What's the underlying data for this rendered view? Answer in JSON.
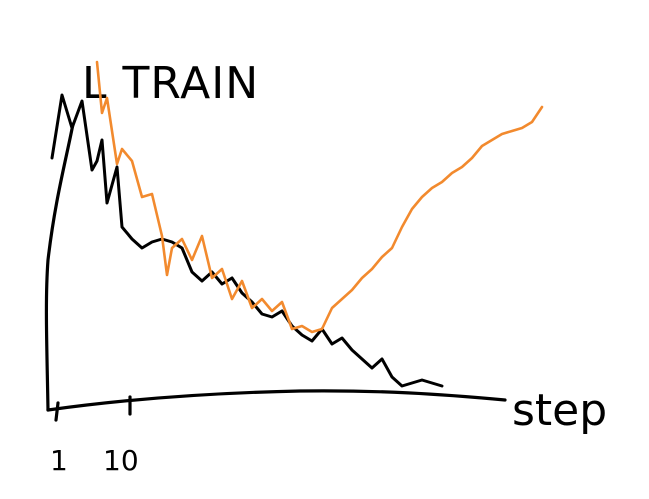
{
  "chart_data": {
    "type": "line",
    "title": "L TRAIN",
    "xlabel": "step",
    "ylabel": "",
    "x_ticks": [
      "1",
      "10"
    ],
    "grid": false,
    "series": [
      {
        "color": "#000000",
        "x": [
          1,
          3,
          5,
          7,
          9,
          10,
          11,
          12,
          13,
          14,
          15,
          17,
          19,
          21,
          23,
          25,
          27,
          29,
          31,
          33,
          35,
          37,
          39,
          41,
          43,
          45,
          47,
          49,
          51,
          53,
          55,
          57,
          59,
          61,
          63,
          65,
          67,
          69,
          71,
          73,
          75,
          77,
          79
        ],
        "values": [
          0.78,
          0.99,
          0.88,
          0.97,
          0.74,
          0.77,
          0.84,
          0.63,
          0.69,
          0.75,
          0.55,
          0.51,
          0.48,
          0.5,
          0.51,
          0.5,
          0.48,
          0.4,
          0.37,
          0.4,
          0.36,
          0.38,
          0.33,
          0.3,
          0.26,
          0.25,
          0.27,
          0.22,
          0.19,
          0.17,
          0.21,
          0.16,
          0.18,
          0.14,
          0.11,
          0.08,
          0.11,
          0.05,
          0.02,
          0.03,
          0.04,
          0.03,
          0.02
        ]
      },
      {
        "color": "#f28a2e",
        "x": [
          10,
          11,
          12,
          14,
          15,
          17,
          19,
          21,
          23,
          24,
          25,
          27,
          29,
          31,
          33,
          35,
          37,
          39,
          41,
          43,
          45,
          47,
          49,
          51,
          53,
          55,
          57,
          59,
          61,
          63,
          65,
          67,
          69,
          71,
          73,
          75,
          77,
          79,
          81,
          83,
          85,
          87,
          89,
          91,
          93,
          95,
          97,
          99
        ],
        "values": [
          1.1,
          0.93,
          0.98,
          0.76,
          0.81,
          0.77,
          0.65,
          0.66,
          0.52,
          0.39,
          0.48,
          0.51,
          0.44,
          0.52,
          0.38,
          0.41,
          0.31,
          0.37,
          0.28,
          0.31,
          0.27,
          0.3,
          0.21,
          0.22,
          0.2,
          0.21,
          0.28,
          0.31,
          0.34,
          0.38,
          0.41,
          0.45,
          0.48,
          0.55,
          0.61,
          0.65,
          0.68,
          0.7,
          0.73,
          0.75,
          0.78,
          0.82,
          0.84,
          0.86,
          0.87,
          0.88,
          0.9,
          0.95
        ]
      }
    ]
  }
}
